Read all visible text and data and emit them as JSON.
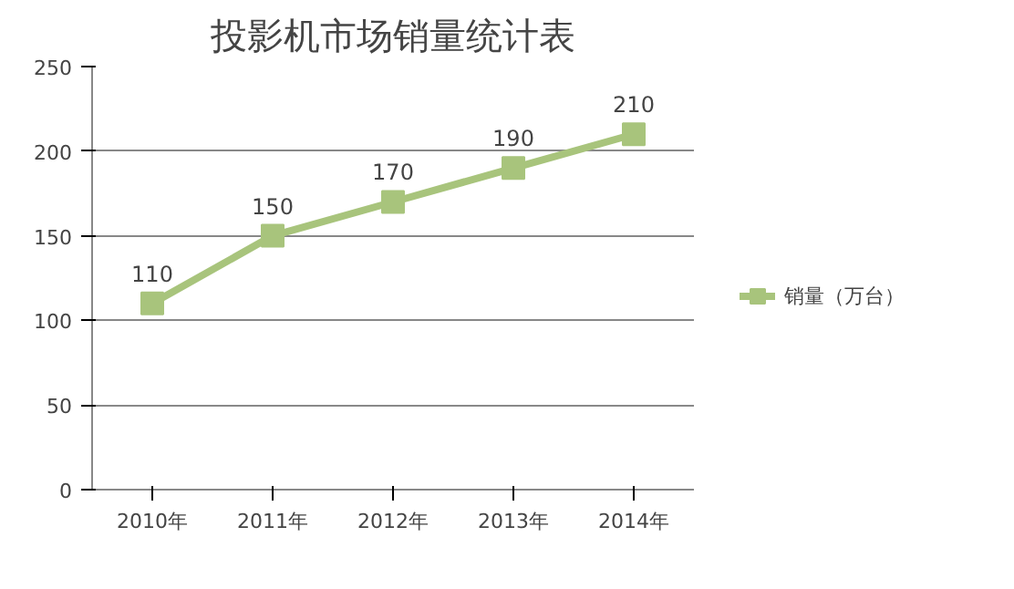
{
  "chart_data": {
    "type": "line",
    "title": "投影机市场销量统计表",
    "categories": [
      "2010年",
      "2011年",
      "2012年",
      "2013年",
      "2014年"
    ],
    "series": [
      {
        "name": "销量（万台）",
        "color": "#a8c47c",
        "values": [
          110,
          150,
          170,
          190,
          210
        ]
      }
    ],
    "ylim": [
      0,
      250
    ],
    "yticks": [
      0,
      50,
      100,
      150,
      200,
      250
    ],
    "grid": "y",
    "legend": "right",
    "marker": "square",
    "data_labels": true
  }
}
